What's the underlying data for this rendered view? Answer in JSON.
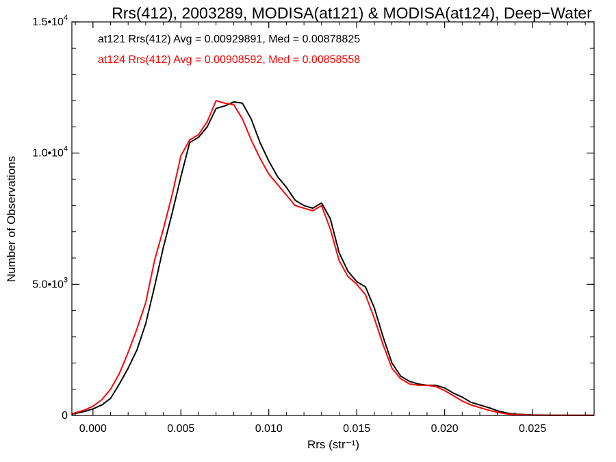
{
  "chart_data": {
    "type": "line",
    "title": "Rrs(412), 2003289, MODISA(at121) & MODISA(at124), Deep−Water",
    "xlabel": "Rrs (str⁻¹)",
    "ylabel": "Number of Observations",
    "xlim": [
      -0.0012,
      0.0285
    ],
    "ylim": [
      0,
      15000
    ],
    "x_ticks": [
      0.0,
      0.005,
      0.01,
      0.015,
      0.02,
      0.025
    ],
    "x_tick_labels": [
      "0.000",
      "0.005",
      "0.010",
      "0.015",
      "0.020",
      "0.025"
    ],
    "y_ticks": [
      0,
      5000,
      10000,
      15000
    ],
    "y_tick_labels": [
      {
        "base": "0",
        "exp": ""
      },
      {
        "base": "5.0•10",
        "exp": "3"
      },
      {
        "base": "1.0•10",
        "exp": "4"
      },
      {
        "base": "1.5•10",
        "exp": "4"
      }
    ],
    "grid": false,
    "legend_position": "top-left",
    "annotations": [
      {
        "text": "at121 Rrs(412) Avg = 0.00929891, Med = 0.00878825",
        "color": "#000000"
      },
      {
        "text": "at124 Rrs(412) Avg = 0.00908592, Med = 0.00858558",
        "color": "#ff0000"
      }
    ],
    "x": [
      -0.0012,
      -0.0005,
      0.0,
      0.0005,
      0.001,
      0.0015,
      0.002,
      0.0025,
      0.003,
      0.0035,
      0.004,
      0.0045,
      0.005,
      0.0055,
      0.006,
      0.0065,
      0.007,
      0.0075,
      0.008,
      0.0085,
      0.009,
      0.0095,
      0.01,
      0.0105,
      0.011,
      0.0115,
      0.012,
      0.0125,
      0.013,
      0.0135,
      0.014,
      0.0145,
      0.015,
      0.0155,
      0.016,
      0.0165,
      0.017,
      0.0175,
      0.018,
      0.0185,
      0.019,
      0.0195,
      0.02,
      0.0205,
      0.021,
      0.0215,
      0.022,
      0.0225,
      0.023,
      0.0235,
      0.024,
      0.025,
      0.026,
      0.027,
      0.0285
    ],
    "series": [
      {
        "name": "at121",
        "color": "#000000",
        "values": [
          50,
          150,
          250,
          400,
          650,
          1200,
          1800,
          2500,
          3500,
          4900,
          6400,
          7700,
          9100,
          10400,
          10600,
          11000,
          11700,
          11800,
          11950,
          11900,
          11300,
          10400,
          9700,
          9100,
          8700,
          8200,
          8000,
          7900,
          8100,
          7500,
          6200,
          5500,
          5100,
          4900,
          4100,
          3000,
          2000,
          1500,
          1300,
          1200,
          1150,
          1150,
          1050,
          850,
          700,
          500,
          400,
          300,
          180,
          100,
          50,
          20,
          10,
          5,
          5
        ]
      },
      {
        "name": "at124",
        "color": "#ff0000",
        "values": [
          60,
          200,
          350,
          600,
          1000,
          1600,
          2400,
          3300,
          4300,
          5900,
          7100,
          8400,
          9900,
          10500,
          10700,
          11200,
          12000,
          11900,
          11850,
          11300,
          10500,
          9800,
          9200,
          8800,
          8400,
          8000,
          7900,
          7800,
          8000,
          7100,
          5900,
          5300,
          5000,
          4600,
          3700,
          2700,
          1800,
          1400,
          1200,
          1150,
          1150,
          1100,
          950,
          750,
          550,
          400,
          300,
          200,
          120,
          60,
          30,
          10,
          5,
          5,
          5
        ]
      }
    ]
  }
}
